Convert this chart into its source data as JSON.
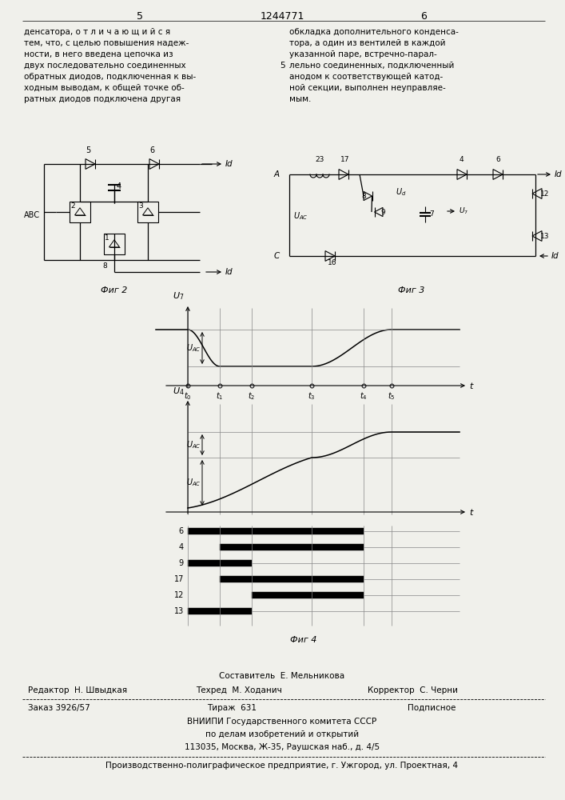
{
  "title_num": "1244771",
  "page_left": "5",
  "page_right": "6",
  "text_left": "денсатора, о т л и ч а ю щ и й с я\nтем, что, с целью повышения надеж-\nности, в него введена цепочка из\nдвух последовательно соединенных\nобратных диодов, подключенная к вы-\nходным выводам, к общей точке об-\nратных диодов подключена другая",
  "text_right": "обкладка дополнительного конденса-\nтора, а один из вентилей в каждой\nуказанной паре, встречно-парал-\nлельно соединенных, подключенный\nанодом к соответствующей катод-\nной секции, выполнен неуправляе-\nмым.",
  "fig2_label": "Фиг 2",
  "fig3_label": "Фиг 3",
  "fig4_label": "Фиг 4",
  "footer_line1": "Составитель  Е. Мельникова",
  "footer_editor": "Редактор  Н. Швыдкая",
  "footer_techred": "Техред  М. Ходанич",
  "footer_corrector": "Корректор  С. Черни",
  "footer_order": "Заказ 3926/57",
  "footer_print": "Тираж  631",
  "footer_sub": "Подписное",
  "footer_org1": "ВНИИПИ Государственного комитета СССР",
  "footer_org2": "по делам изобретений и открытий",
  "footer_addr": "113035, Москва, Ж-35, Раушская наб., д. 4/5",
  "footer_prod": "Производственно-полиграфическое предприятие, г. Ужгород, ул. Проектная, 4",
  "bg_color": "#f0f0eb"
}
